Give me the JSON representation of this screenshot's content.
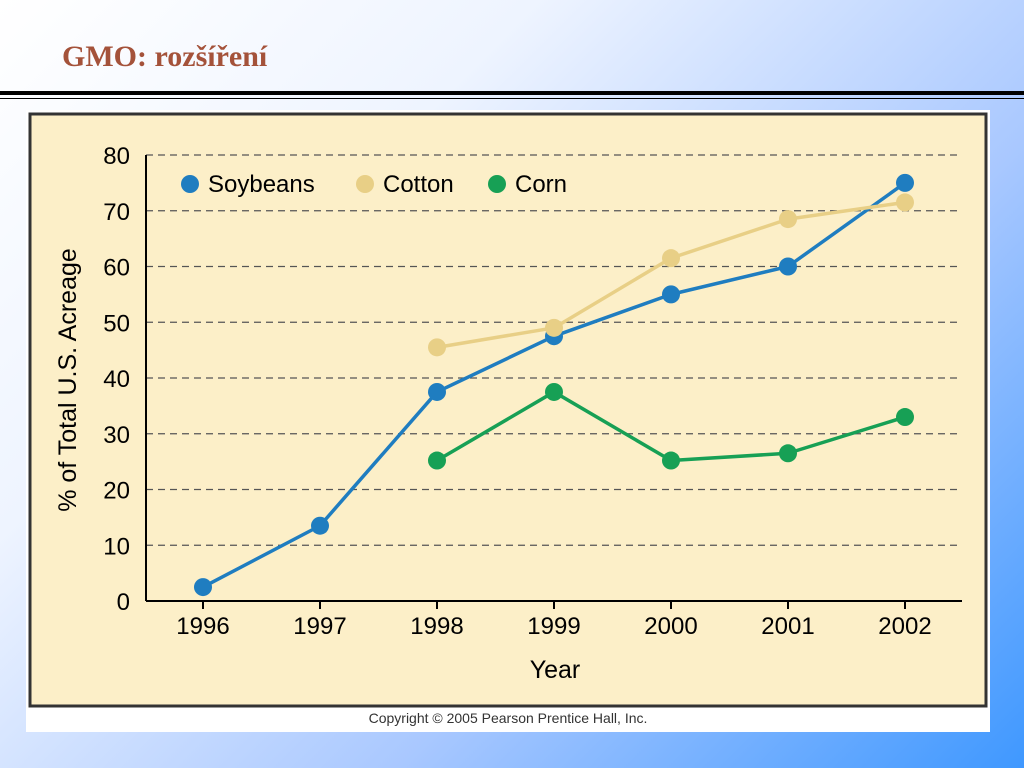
{
  "slide": {
    "title": "GMO: rozšíření",
    "copyright": "Copyright © 2005 Pearson Prentice Hall, Inc."
  },
  "colors": {
    "title": "#a4523a",
    "panel": "#fcefc8",
    "soybeans": "#1f7dc0",
    "cotton": "#e8cf86",
    "corn": "#17a055"
  },
  "chart_data": {
    "type": "line",
    "title": "",
    "xlabel": "Year",
    "ylabel": "% of Total U.S. Acreage",
    "x": [
      "1996",
      "1997",
      "1998",
      "1999",
      "2000",
      "2001",
      "2002"
    ],
    "ylim": [
      0,
      80
    ],
    "yticks": [
      "0",
      "10",
      "20",
      "30",
      "40",
      "50",
      "60",
      "70",
      "80"
    ],
    "grid": "horizontal dashed",
    "legend_position": "top-left",
    "series": [
      {
        "name": "Soybeans",
        "color": "#1f7dc0",
        "values": [
          2.5,
          13.5,
          37.5,
          47.5,
          55,
          60,
          75
        ]
      },
      {
        "name": "Cotton",
        "color": "#e8cf86",
        "values": [
          null,
          null,
          45.5,
          49,
          61.5,
          68.5,
          71.5
        ]
      },
      {
        "name": "Corn",
        "color": "#17a055",
        "values": [
          null,
          null,
          25.2,
          37.5,
          25.2,
          26.5,
          33
        ]
      }
    ]
  }
}
